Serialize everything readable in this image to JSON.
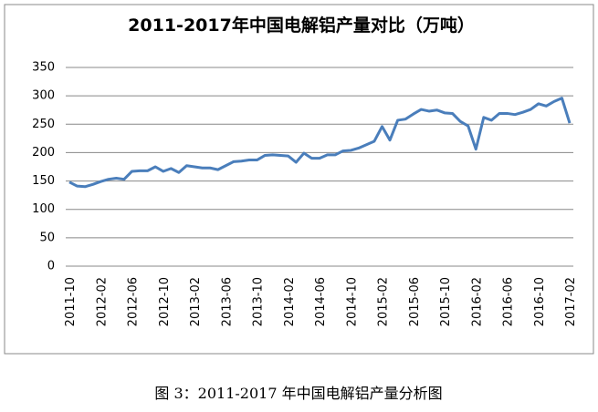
{
  "chart_data": {
    "type": "line",
    "title": "2011-2017年中国电解铝产量对比（万吨）",
    "caption": "图 3：2011-2017 年中国电解铝产量分析图",
    "categories": [
      "2011-10",
      null,
      null,
      null,
      "2012-02",
      null,
      null,
      null,
      "2012-06",
      null,
      null,
      null,
      "2012-10",
      null,
      null,
      null,
      "2013-02",
      null,
      null,
      null,
      "2013-06",
      null,
      null,
      null,
      "2013-10",
      null,
      null,
      null,
      "2014-02",
      null,
      null,
      null,
      "2014-06",
      null,
      null,
      null,
      "2014-10",
      null,
      null,
      null,
      "2015-02",
      null,
      null,
      null,
      "2015-06",
      null,
      null,
      null,
      "2015-10",
      null,
      null,
      null,
      "2016-02",
      null,
      null,
      null,
      "2016-06",
      null,
      null,
      null,
      "2016-10",
      null,
      null,
      null,
      "2017-02"
    ],
    "series": [
      {
        "name": "产量",
        "color": "#4a7ebb",
        "values": [
          148,
          141,
          140,
          144,
          149,
          153,
          155,
          153,
          167,
          168,
          168,
          175,
          167,
          172,
          165,
          177,
          175,
          173,
          173,
          170,
          177,
          184,
          185,
          187,
          187,
          195,
          196,
          195,
          194,
          183,
          199,
          190,
          190,
          196,
          196,
          203,
          204,
          208,
          214,
          220,
          246,
          222,
          257,
          259,
          268,
          276,
          273,
          275,
          270,
          269,
          255,
          247,
          206,
          262,
          257,
          269,
          269,
          267,
          271,
          276,
          286,
          282,
          290,
          296,
          252
        ]
      }
    ],
    "ylim": [
      0,
      350
    ],
    "yticks": [
      0,
      50,
      100,
      150,
      200,
      250,
      300,
      350
    ],
    "grid": true
  }
}
